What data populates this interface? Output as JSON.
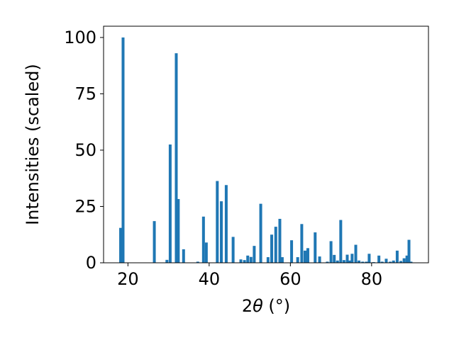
{
  "chart_data": {
    "type": "bar",
    "xlabel_prefix": "2",
    "xlabel_symbol": "θ",
    "xlabel_unit": " (°)",
    "ylabel": "Intensities (scaled)",
    "xlim": [
      14,
      94
    ],
    "ylim": [
      0,
      105
    ],
    "x_ticks": [
      20,
      40,
      60,
      80
    ],
    "y_ticks": [
      0,
      25,
      50,
      75,
      100
    ],
    "bar_width_deg": 0.7,
    "bar_color": "#1f77b4",
    "grid": false,
    "x": [
      18.2,
      18.8,
      26.5,
      29.6,
      30.4,
      31.9,
      32.4,
      33.7,
      37.2,
      38.6,
      39.3,
      42.0,
      43.0,
      44.2,
      45.9,
      47.8,
      48.7,
      49.5,
      50.3,
      51.1,
      52.7,
      54.5,
      55.4,
      56.4,
      57.4,
      58.0,
      60.3,
      61.8,
      62.8,
      63.6,
      64.3,
      66.1,
      67.2,
      69.1,
      70.0,
      70.8,
      71.6,
      72.4,
      73.2,
      74.0,
      74.7,
      75.2,
      76.1,
      76.9,
      77.8,
      78.7,
      79.4,
      80.5,
      81.8,
      82.6,
      83.6,
      84.6,
      85.4,
      86.3,
      87.2,
      88.0,
      88.7,
      89.2,
      89.7
    ],
    "values": [
      15.5,
      100,
      18.5,
      1.3,
      52.5,
      93,
      28.3,
      6.0,
      0.5,
      20.5,
      9.0,
      36.3,
      27.3,
      34.5,
      11.5,
      1.5,
      1.2,
      3.2,
      2.6,
      7.5,
      26.2,
      2.5,
      12.5,
      16.0,
      19.5,
      2.5,
      10.0,
      2.5,
      17.2,
      5.4,
      6.5,
      13.5,
      2.8,
      0.5,
      9.6,
      3.5,
      1.0,
      19.0,
      1.2,
      3.6,
      1.0,
      4.0,
      8.0,
      1.0,
      0.5,
      0.5,
      4.0,
      0.3,
      3.2,
      0.5,
      1.8,
      0.5,
      1.0,
      5.4,
      0.8,
      2.0,
      3.2,
      10.2,
      0.5
    ]
  }
}
